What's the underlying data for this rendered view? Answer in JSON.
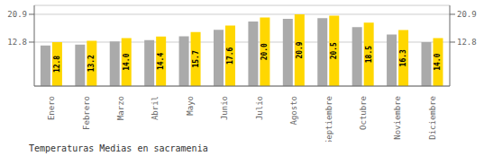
{
  "chart_data": {
    "type": "bar",
    "title": "Temperaturas Medias en sacramenia",
    "categories": [
      "Enero",
      "Febrero",
      "Marzo",
      "Abril",
      "Mayo",
      "Junio",
      "Julio",
      "Agosto",
      "Septiembre",
      "Octubre",
      "Noviembre",
      "Diciembre"
    ],
    "series": [
      {
        "color": "#AAAAAA",
        "values": [
          11.8,
          12.1,
          13.0,
          13.4,
          14.5,
          16.4,
          18.8,
          19.6,
          19.8,
          17.2,
          15.0,
          12.8
        ]
      },
      {
        "color": "#FFD700",
        "values": [
          12.8,
          13.2,
          14.0,
          14.4,
          15.7,
          17.6,
          20.0,
          20.9,
          20.5,
          18.5,
          16.3,
          14.0
        ],
        "data_labels": true,
        "value_labels": [
          "12.8",
          "13.2",
          "14.0",
          "14.4",
          "15.7",
          "17.6",
          "20.0",
          "20.9",
          "20.5",
          "18.5",
          "16.3",
          "14.0"
        ]
      }
    ],
    "ylim": [
      0,
      23.5
    ],
    "yticks": [
      12.8,
      20.9
    ],
    "grid": true
  }
}
